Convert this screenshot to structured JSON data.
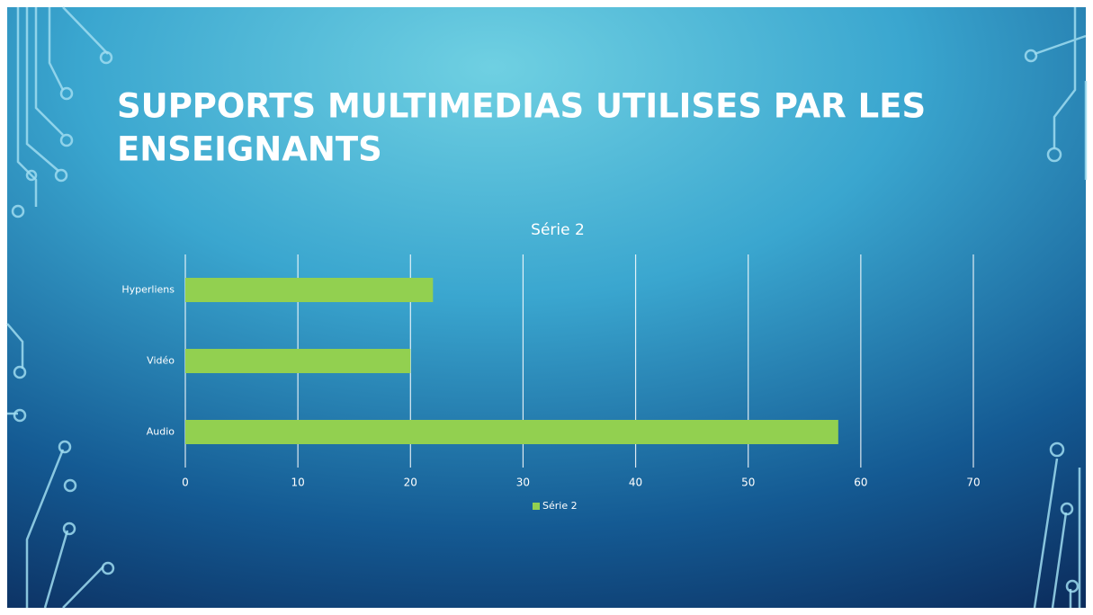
{
  "slide_title": "SUPPORTS MULTIMEDIAS UTILISES PAR LES ENSEIGNANTS",
  "chart_data": {
    "type": "bar",
    "orientation": "horizontal",
    "title": "Série 2",
    "categories": [
      "Audio",
      "Vidéo",
      "Hyperliens"
    ],
    "series": [
      {
        "name": "Série 2",
        "color": "#92d050",
        "values": [
          58,
          20,
          22
        ]
      }
    ],
    "xlim": [
      0,
      70
    ],
    "xticks": [
      0,
      10,
      20,
      30,
      40,
      50,
      60,
      70
    ],
    "grid": true,
    "legend": "bottom"
  }
}
